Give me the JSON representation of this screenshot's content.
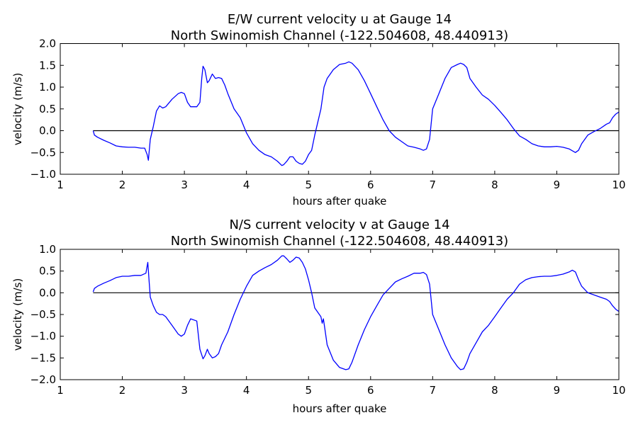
{
  "chart_data": [
    {
      "type": "line",
      "title": "E/W current velocity u at Gauge 14",
      "subtitle": "North Swinomish Channel  (-122.504608, 48.440913)",
      "xlabel": "hours after quake",
      "ylabel": "velocity (m/s)",
      "xlim": [
        1,
        10
      ],
      "ylim": [
        -1.0,
        2.0
      ],
      "xticks": [
        "1",
        "2",
        "3",
        "4",
        "5",
        "6",
        "7",
        "8",
        "9",
        "10"
      ],
      "yticks": [
        "2.0",
        "1.5",
        "1.0",
        "0.5",
        "0.0",
        "−0.5",
        "−1.0"
      ],
      "ytick_values": [
        2.0,
        1.5,
        1.0,
        0.5,
        0.0,
        -0.5,
        -1.0
      ],
      "grid": false,
      "series": [
        {
          "color": "#0000ff",
          "x": [
            1.53,
            1.55,
            1.6,
            1.7,
            1.8,
            1.9,
            2.0,
            2.1,
            2.2,
            2.3,
            2.36,
            2.4,
            2.42,
            2.45,
            2.5,
            2.55,
            2.6,
            2.65,
            2.7,
            2.8,
            2.9,
            2.95,
            3.0,
            3.05,
            3.1,
            3.2,
            3.25,
            3.28,
            3.3,
            3.33,
            3.37,
            3.4,
            3.45,
            3.5,
            3.55,
            3.6,
            3.65,
            3.7,
            3.8,
            3.9,
            4.0,
            4.1,
            4.2,
            4.3,
            4.4,
            4.5,
            4.57,
            4.6,
            4.65,
            4.7,
            4.75,
            4.8,
            4.85,
            4.9,
            4.95,
            5.0,
            5.05,
            5.1,
            5.2,
            5.25,
            5.3,
            5.4,
            5.5,
            5.6,
            5.65,
            5.7,
            5.8,
            5.9,
            6.0,
            6.1,
            6.2,
            6.3,
            6.4,
            6.5,
            6.6,
            6.7,
            6.8,
            6.85,
            6.9,
            6.95,
            7.0,
            7.1,
            7.2,
            7.3,
            7.4,
            7.45,
            7.5,
            7.55,
            7.6,
            7.7,
            7.8,
            7.9,
            8.0,
            8.1,
            8.2,
            8.3,
            8.4,
            8.5,
            8.6,
            8.7,
            8.8,
            8.9,
            9.0,
            9.1,
            9.2,
            9.25,
            9.3,
            9.35,
            9.4,
            9.5,
            9.6,
            9.7,
            9.8,
            9.85,
            9.9,
            9.95,
            10.0
          ],
          "y": [
            0.0,
            -0.1,
            -0.15,
            -0.22,
            -0.28,
            -0.35,
            -0.37,
            -0.38,
            -0.38,
            -0.4,
            -0.4,
            -0.55,
            -0.68,
            -0.2,
            0.1,
            0.45,
            0.57,
            0.52,
            0.55,
            0.72,
            0.85,
            0.88,
            0.85,
            0.65,
            0.55,
            0.55,
            0.65,
            1.2,
            1.48,
            1.4,
            1.1,
            1.15,
            1.3,
            1.2,
            1.22,
            1.2,
            1.05,
            0.85,
            0.5,
            0.3,
            -0.05,
            -0.3,
            -0.45,
            -0.55,
            -0.6,
            -0.7,
            -0.8,
            -0.78,
            -0.7,
            -0.6,
            -0.6,
            -0.7,
            -0.75,
            -0.77,
            -0.7,
            -0.55,
            -0.45,
            -0.1,
            0.5,
            1.0,
            1.2,
            1.4,
            1.52,
            1.55,
            1.58,
            1.55,
            1.4,
            1.15,
            0.85,
            0.55,
            0.25,
            0.0,
            -0.15,
            -0.25,
            -0.35,
            -0.38,
            -0.42,
            -0.45,
            -0.42,
            -0.2,
            0.5,
            0.85,
            1.2,
            1.45,
            1.52,
            1.55,
            1.52,
            1.45,
            1.2,
            1.0,
            0.82,
            0.72,
            0.58,
            0.42,
            0.25,
            0.05,
            -0.12,
            -0.2,
            -0.3,
            -0.35,
            -0.37,
            -0.37,
            -0.36,
            -0.38,
            -0.42,
            -0.46,
            -0.5,
            -0.45,
            -0.3,
            -0.1,
            -0.02,
            0.05,
            0.15,
            0.18,
            0.3,
            0.38,
            0.43
          ]
        }
      ],
      "reference_line": {
        "y": 0.0,
        "x": [
          1.53,
          10
        ],
        "color": "#000000"
      }
    },
    {
      "type": "line",
      "title": "N/S current velocity v at Gauge 14",
      "subtitle": "North Swinomish Channel  (-122.504608, 48.440913)",
      "xlabel": "hours after quake",
      "ylabel": "velocity (m/s)",
      "xlim": [
        1,
        10
      ],
      "ylim": [
        -2.0,
        1.0
      ],
      "xticks": [
        "1",
        "2",
        "3",
        "4",
        "5",
        "6",
        "7",
        "8",
        "9",
        "10"
      ],
      "yticks": [
        "1.0",
        "0.5",
        "0.0",
        "−0.5",
        "−1.0",
        "−1.5",
        "−2.0"
      ],
      "ytick_values": [
        1.0,
        0.5,
        0.0,
        -0.5,
        -1.0,
        -1.5,
        -2.0
      ],
      "grid": false,
      "series": [
        {
          "color": "#0000ff",
          "x": [
            1.53,
            1.55,
            1.6,
            1.7,
            1.8,
            1.9,
            2.0,
            2.1,
            2.2,
            2.3,
            2.38,
            2.41,
            2.43,
            2.45,
            2.5,
            2.55,
            2.6,
            2.65,
            2.7,
            2.8,
            2.9,
            2.95,
            3.0,
            3.05,
            3.1,
            3.2,
            3.25,
            3.3,
            3.33,
            3.37,
            3.4,
            3.45,
            3.5,
            3.55,
            3.6,
            3.7,
            3.8,
            3.9,
            4.0,
            4.1,
            4.2,
            4.3,
            4.4,
            4.5,
            4.57,
            4.6,
            4.65,
            4.7,
            4.75,
            4.8,
            4.85,
            4.9,
            4.95,
            5.0,
            5.05,
            5.1,
            5.2,
            5.22,
            5.24,
            5.26,
            5.3,
            5.4,
            5.5,
            5.6,
            5.65,
            5.7,
            5.8,
            5.9,
            6.0,
            6.1,
            6.2,
            6.3,
            6.4,
            6.5,
            6.6,
            6.7,
            6.8,
            6.85,
            6.9,
            6.95,
            7.0,
            7.1,
            7.2,
            7.3,
            7.4,
            7.45,
            7.5,
            7.55,
            7.6,
            7.7,
            7.8,
            7.9,
            8.0,
            8.1,
            8.2,
            8.3,
            8.4,
            8.5,
            8.6,
            8.7,
            8.8,
            8.9,
            9.0,
            9.1,
            9.2,
            9.25,
            9.3,
            9.35,
            9.4,
            9.5,
            9.6,
            9.7,
            9.8,
            9.85,
            9.9,
            9.95,
            10.0
          ],
          "y": [
            0.02,
            0.1,
            0.15,
            0.22,
            0.28,
            0.35,
            0.38,
            0.38,
            0.4,
            0.4,
            0.45,
            0.7,
            0.3,
            -0.1,
            -0.3,
            -0.45,
            -0.5,
            -0.5,
            -0.55,
            -0.75,
            -0.95,
            -1.0,
            -0.95,
            -0.75,
            -0.6,
            -0.65,
            -1.3,
            -1.52,
            -1.45,
            -1.3,
            -1.4,
            -1.5,
            -1.47,
            -1.4,
            -1.2,
            -0.9,
            -0.5,
            -0.15,
            0.15,
            0.4,
            0.5,
            0.58,
            0.65,
            0.75,
            0.85,
            0.85,
            0.78,
            0.7,
            0.75,
            0.82,
            0.8,
            0.7,
            0.55,
            0.3,
            0.0,
            -0.35,
            -0.55,
            -0.7,
            -0.6,
            -0.8,
            -1.2,
            -1.55,
            -1.72,
            -1.77,
            -1.75,
            -1.6,
            -1.2,
            -0.85,
            -0.55,
            -0.3,
            -0.05,
            0.1,
            0.25,
            0.32,
            0.38,
            0.45,
            0.45,
            0.47,
            0.42,
            0.2,
            -0.5,
            -0.85,
            -1.2,
            -1.5,
            -1.7,
            -1.77,
            -1.75,
            -1.6,
            -1.4,
            -1.15,
            -0.9,
            -0.75,
            -0.55,
            -0.35,
            -0.15,
            0.0,
            0.2,
            0.3,
            0.35,
            0.37,
            0.38,
            0.38,
            0.4,
            0.43,
            0.48,
            0.52,
            0.48,
            0.3,
            0.15,
            0.0,
            -0.05,
            -0.1,
            -0.15,
            -0.2,
            -0.3,
            -0.38,
            -0.43
          ]
        }
      ],
      "reference_line": {
        "y": 0.0,
        "x": [
          1.53,
          10
        ],
        "color": "#000000"
      }
    }
  ]
}
